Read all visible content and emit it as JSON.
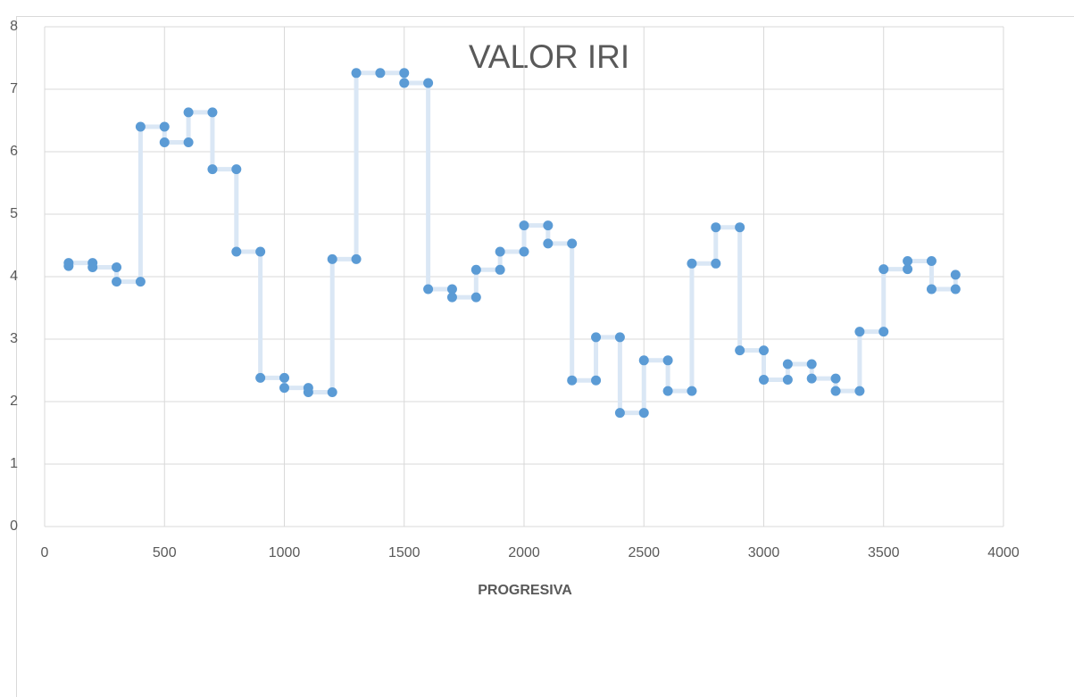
{
  "chart_data": {
    "type": "line",
    "title": "VALOR IRI",
    "x_label": "PROGRESIVA",
    "series": [
      {
        "color": "#5b9bd5",
        "line_color": "#dae7f5",
        "x": [
          100,
          100,
          200,
          200,
          300,
          300,
          400,
          400,
          500,
          500,
          600,
          600,
          700,
          700,
          800,
          800,
          900,
          900,
          1000,
          1000,
          1100,
          1100,
          1200,
          1200,
          1300,
          1300,
          1400,
          1500,
          1500,
          1600,
          1600,
          1700,
          1700,
          1800,
          1800,
          1900,
          1900,
          2000,
          2000,
          2100,
          2100,
          2200,
          2200,
          2300,
          2300,
          2400,
          2400,
          2500,
          2500,
          2600,
          2600,
          2700,
          2700,
          2800,
          2800,
          2900,
          2900,
          3000,
          3000,
          3100,
          3100,
          3200,
          3200,
          3300,
          3300,
          3400,
          3400,
          3500,
          3500,
          3600,
          3600,
          3700,
          3700,
          3800,
          3800
        ],
        "values": [
          4.17,
          4.22,
          4.22,
          4.15,
          4.15,
          3.92,
          3.92,
          6.4,
          6.4,
          6.15,
          6.15,
          6.63,
          6.63,
          5.72,
          5.72,
          4.4,
          4.4,
          2.38,
          2.38,
          2.22,
          2.22,
          2.15,
          2.15,
          4.28,
          4.28,
          7.26,
          7.26,
          7.26,
          7.1,
          7.1,
          3.8,
          3.8,
          3.67,
          3.67,
          4.11,
          4.11,
          4.4,
          4.4,
          4.82,
          4.82,
          4.53,
          4.53,
          2.34,
          2.34,
          3.03,
          3.03,
          1.82,
          1.82,
          2.66,
          2.66,
          2.17,
          2.17,
          4.21,
          4.21,
          4.79,
          4.79,
          2.82,
          2.82,
          2.35,
          2.35,
          2.6,
          2.6,
          2.37,
          2.37,
          2.17,
          2.17,
          3.12,
          3.12,
          4.12,
          4.12,
          4.25,
          4.25,
          3.8,
          3.8,
          4.03
        ]
      }
    ],
    "xlim": [
      0,
      4000
    ],
    "xticks": [
      0,
      500,
      1000,
      1500,
      2000,
      2500,
      3000,
      3500,
      4000
    ],
    "ylim": [
      0,
      8
    ],
    "yticks": [
      0,
      1,
      2,
      3,
      4,
      5,
      6,
      7,
      8
    ],
    "grid": true
  }
}
